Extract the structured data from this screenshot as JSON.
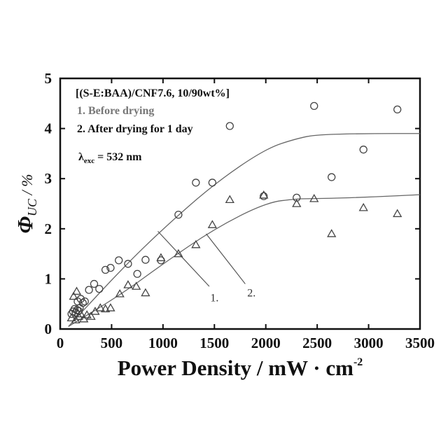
{
  "chart_data": {
    "type": "scatter",
    "x_unit_label": "Power Density / mW · cm",
    "x_unit_exponent": "-2",
    "y_symbol": "Φ",
    "y_subscript": "UC",
    "y_unit": " / %",
    "xlim": [
      0,
      3500
    ],
    "ylim": [
      0,
      5
    ],
    "xticks": [
      0,
      500,
      1000,
      1500,
      2000,
      2500,
      3000,
      3500
    ],
    "yticks": [
      0,
      1,
      2,
      3,
      4,
      5
    ],
    "grid": false,
    "legend_position": "top-left",
    "legend": {
      "title": "[(S-E:BAA)/CNF7.6, 10/90wt%]",
      "entries": [
        "1. Before drying",
        "2. After drying for 1 day"
      ],
      "lambda_symbol": "λ",
      "lambda_subscript": "exc",
      "lambda_value": " = 532 nm"
    },
    "colors": {
      "entry1": "#777777",
      "entry2": "#111111",
      "markers": "#444444",
      "fit": "#666666"
    },
    "series": [
      {
        "marker": "circle",
        "points": [
          [
            110,
            0.3
          ],
          [
            125,
            0.35
          ],
          [
            140,
            0.4
          ],
          [
            150,
            0.33
          ],
          [
            165,
            0.38
          ],
          [
            180,
            0.36
          ],
          [
            190,
            0.42
          ],
          [
            170,
            0.55
          ],
          [
            200,
            0.6
          ],
          [
            220,
            0.52
          ],
          [
            240,
            0.55
          ],
          [
            280,
            0.78
          ],
          [
            330,
            0.9
          ],
          [
            380,
            0.8
          ],
          [
            440,
            1.18
          ],
          [
            490,
            1.22
          ],
          [
            570,
            1.37
          ],
          [
            660,
            1.3
          ],
          [
            750,
            1.1
          ],
          [
            830,
            1.38
          ],
          [
            980,
            1.37
          ],
          [
            1150,
            2.28
          ],
          [
            1320,
            2.92
          ],
          [
            1480,
            2.92
          ],
          [
            1650,
            4.05
          ],
          [
            1980,
            2.65
          ],
          [
            2300,
            2.62
          ],
          [
            2470,
            4.45
          ],
          [
            2640,
            3.03
          ],
          [
            2950,
            3.58
          ],
          [
            3280,
            4.38
          ]
        ]
      },
      {
        "marker": "triangle",
        "points": [
          [
            110,
            0.22
          ],
          [
            130,
            0.65
          ],
          [
            160,
            0.75
          ],
          [
            150,
            0.18
          ],
          [
            180,
            0.25
          ],
          [
            200,
            0.3
          ],
          [
            230,
            0.2
          ],
          [
            260,
            0.28
          ],
          [
            300,
            0.25
          ],
          [
            340,
            0.35
          ],
          [
            390,
            0.42
          ],
          [
            440,
            0.4
          ],
          [
            490,
            0.42
          ],
          [
            580,
            0.7
          ],
          [
            660,
            0.88
          ],
          [
            740,
            0.85
          ],
          [
            830,
            0.72
          ],
          [
            980,
            1.42
          ],
          [
            1150,
            1.5
          ],
          [
            1320,
            1.68
          ],
          [
            1480,
            2.08
          ],
          [
            1650,
            2.58
          ],
          [
            1980,
            2.67
          ],
          [
            2300,
            2.5
          ],
          [
            2470,
            2.6
          ],
          [
            2640,
            1.9
          ],
          [
            2950,
            2.42
          ],
          [
            3280,
            2.3
          ]
        ]
      }
    ],
    "fit_curves": [
      {
        "label": "1.",
        "points": [
          [
            80,
            0.05
          ],
          [
            600,
            1.2
          ],
          [
            1000,
            2.0
          ],
          [
            1500,
            2.9
          ],
          [
            2000,
            3.6
          ],
          [
            2300,
            3.8
          ],
          [
            2500,
            3.88
          ],
          [
            3000,
            3.9
          ],
          [
            3500,
            3.9
          ]
        ]
      },
      {
        "label": "2.",
        "points": [
          [
            80,
            0.05
          ],
          [
            600,
            0.7
          ],
          [
            1000,
            1.3
          ],
          [
            1500,
            2.0
          ],
          [
            2000,
            2.52
          ],
          [
            2300,
            2.6
          ],
          [
            2500,
            2.6
          ],
          [
            3000,
            2.63
          ],
          [
            3500,
            2.68
          ]
        ]
      }
    ]
  }
}
